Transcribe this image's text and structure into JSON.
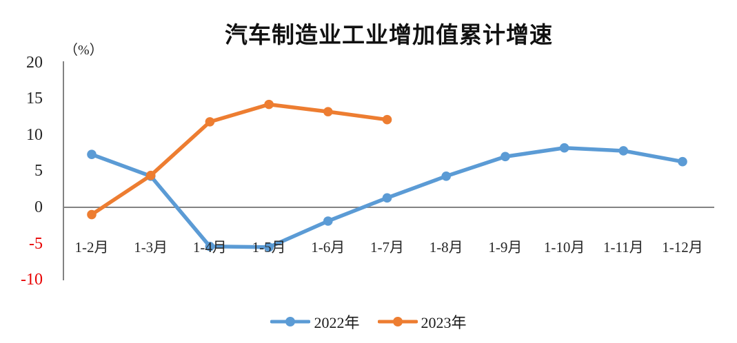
{
  "title": "汽车制造业工业增加值累计增速",
  "unit_label": "（%）",
  "chart_data": {
    "type": "line",
    "categories": [
      "1-2月",
      "1-3月",
      "1-4月",
      "1-5月",
      "1-6月",
      "1-7月",
      "1-8月",
      "1-9月",
      "1-10月",
      "1-11月",
      "1-12月"
    ],
    "series": [
      {
        "name": "2022年",
        "color": "#5B9BD5",
        "values": [
          7.3,
          4.3,
          -5.4,
          -5.5,
          -1.9,
          1.3,
          4.3,
          7.0,
          8.2,
          7.8,
          6.3
        ]
      },
      {
        "name": "2023年",
        "color": "#ED7D31",
        "values": [
          -1.0,
          4.4,
          11.8,
          14.2,
          13.2,
          12.1
        ]
      }
    ],
    "xlabel": "",
    "ylabel": "（%）",
    "ylim": [
      -10,
      20
    ],
    "yticks": [
      20,
      15,
      10,
      5,
      0,
      -5,
      -10
    ],
    "tick_color": "#262626",
    "negative_tick_color": "#e80000",
    "axis_color": "#828282",
    "grid": false,
    "legend_position": "bottom"
  }
}
